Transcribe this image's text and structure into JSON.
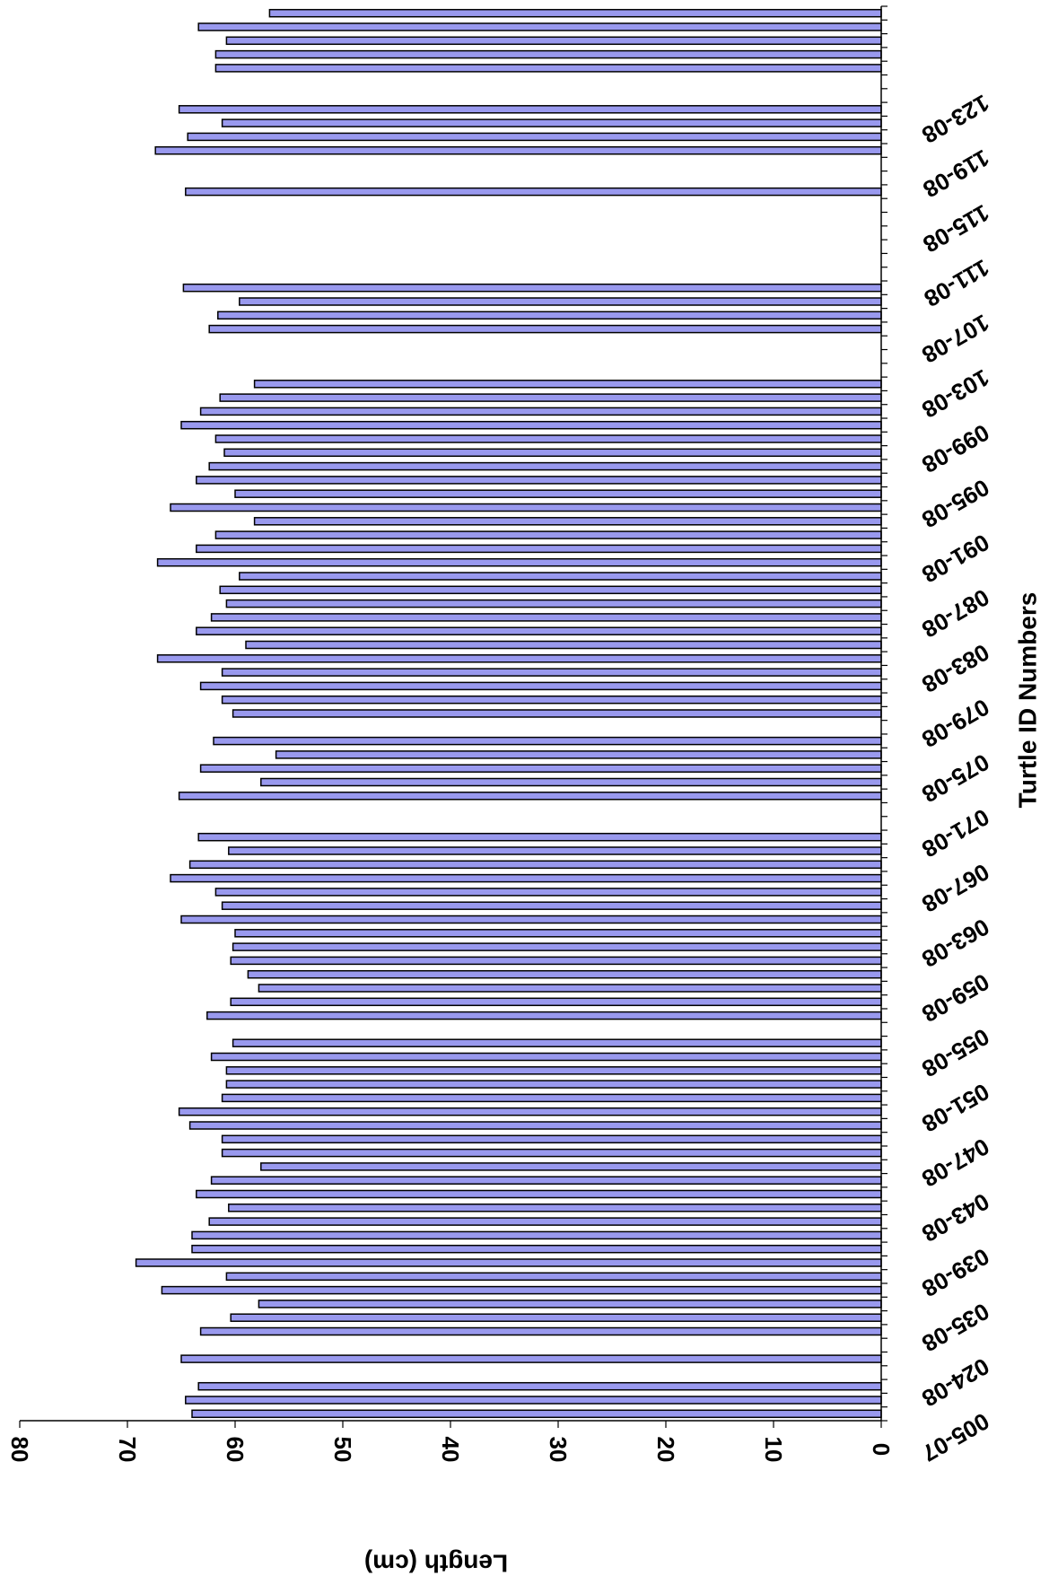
{
  "chart_data": {
    "type": "bar",
    "xlabel": "Turtle ID Numbers",
    "ylabel": "Length (cm)",
    "ylim": [
      0,
      80
    ],
    "y_ticks": [
      0,
      10,
      20,
      30,
      40,
      50,
      60,
      70,
      80
    ],
    "x_tick_labels": [
      "005-07",
      "024-08",
      "035-08",
      "039-08",
      "043-08",
      "047-08",
      "051-08",
      "055-08",
      "059-08",
      "063-08",
      "067-08",
      "071-08",
      "075-08",
      "079-08",
      "083-08",
      "087-08",
      "091-08",
      "095-08",
      "099-08",
      "103-08",
      "107-08",
      "111-08",
      "115-08",
      "119-08",
      "123-08"
    ],
    "bar_color": "#9999ee",
    "grid": false,
    "values": [
      64.0,
      64.6,
      63.4,
      null,
      65.0,
      null,
      63.2,
      60.4,
      57.8,
      66.8,
      60.8,
      69.2,
      64.0,
      64.0,
      62.4,
      60.6,
      63.6,
      62.2,
      57.6,
      61.2,
      61.2,
      64.2,
      65.2,
      61.2,
      60.8,
      60.8,
      62.2,
      60.2,
      null,
      62.6,
      60.4,
      57.8,
      58.8,
      60.4,
      60.2,
      60.0,
      65.0,
      61.2,
      61.8,
      66.0,
      64.2,
      60.6,
      63.4,
      null,
      null,
      65.2,
      57.6,
      63.2,
      56.2,
      62.0,
      null,
      60.2,
      61.2,
      63.2,
      61.2,
      67.2,
      59.0,
      63.6,
      62.2,
      60.8,
      61.4,
      59.6,
      67.2,
      63.6,
      61.8,
      58.2,
      66.0,
      60.0,
      63.6,
      62.4,
      61.0,
      61.8,
      65.0,
      63.2,
      61.4,
      58.2,
      null,
      null,
      null,
      62.4,
      61.6,
      59.6,
      64.8,
      null,
      null,
      null,
      null,
      null,
      null,
      64.6,
      null,
      null,
      67.4,
      64.4,
      61.2,
      65.2,
      null,
      null,
      61.8,
      61.8,
      60.8,
      63.4,
      56.8
    ]
  }
}
